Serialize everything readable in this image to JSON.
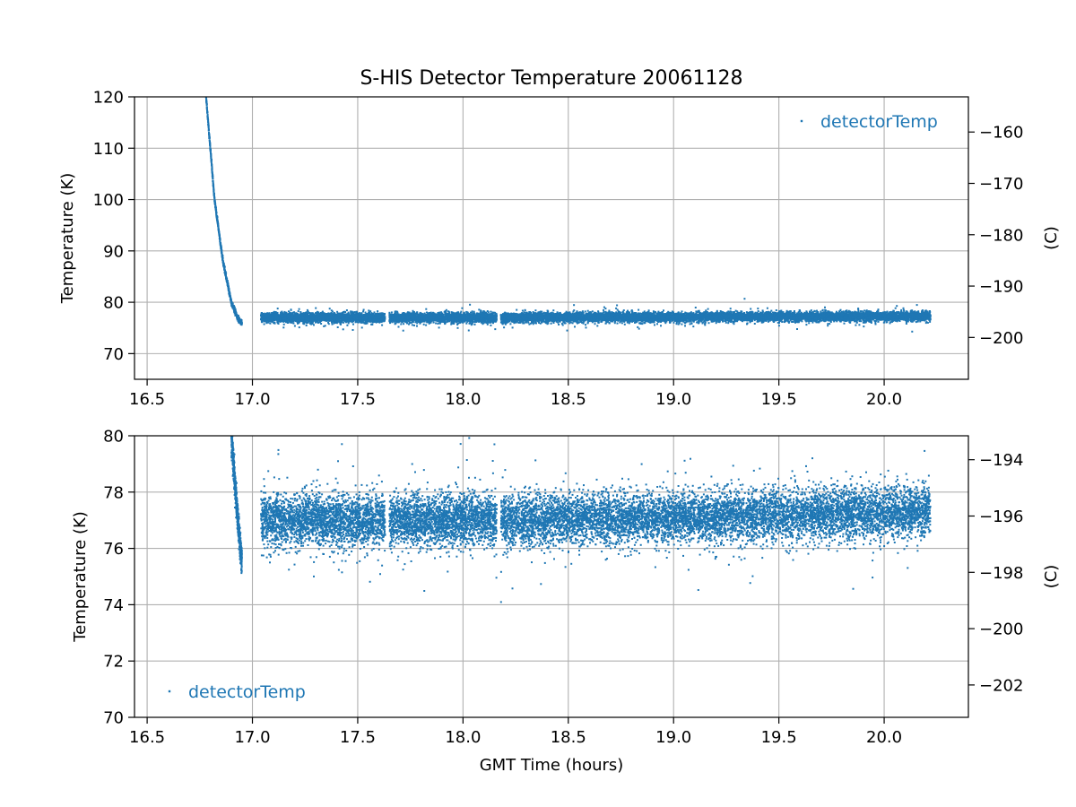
{
  "figure": {
    "title": "S-HIS Detector Temperature 20061128"
  },
  "chart_data": [
    {
      "type": "scatter",
      "title": "S-HIS Detector Temperature 20061128",
      "xlabel": "",
      "ylabel": "Temperature (K)",
      "y2label": "(C)",
      "xlim": [
        16.44,
        20.4
      ],
      "ylim": [
        65,
        120
      ],
      "y2lim": [
        -208.15,
        -153.15
      ],
      "xticks": [
        16.5,
        17.0,
        17.5,
        18.0,
        18.5,
        19.0,
        19.5,
        20.0
      ],
      "xtick_labels": [
        "16.5",
        "17.0",
        "17.5",
        "18.0",
        "18.5",
        "19.0",
        "19.5",
        "20.0"
      ],
      "yticks": [
        70,
        80,
        90,
        100,
        110,
        120
      ],
      "ytick_labels": [
        "70",
        "80",
        "90",
        "100",
        "110",
        "120"
      ],
      "y2ticks": [
        -200,
        -190,
        -180,
        -170,
        -160
      ],
      "y2tick_labels": [
        "−200",
        "−190",
        "−180",
        "−170",
        "−160"
      ],
      "grid": true,
      "legend": {
        "position": "upper-right",
        "entries": [
          "detectorTemp"
        ]
      },
      "series": [
        {
          "name": "detectorTemp",
          "color": "#1f77b4",
          "cooldown": {
            "x": [
              16.78,
              16.82,
              16.86,
              16.9,
              16.93,
              16.95
            ],
            "y": [
              120,
              100,
              88,
              80,
              77,
              76
            ]
          },
          "segments": [
            [
              17.04,
              17.63
            ],
            [
              17.65,
              18.16
            ],
            [
              18.18,
              20.22
            ]
          ],
          "baseline": {
            "x": [
              17.04,
              18.0,
              19.0,
              20.22
            ],
            "y": [
              77.0,
              77.0,
              77.1,
              77.3
            ]
          },
          "spread": 0.9
        }
      ]
    },
    {
      "type": "scatter",
      "title": "",
      "xlabel": "GMT Time (hours)",
      "ylabel": "Temperature (K)",
      "y2label": "(C)",
      "xlim": [
        16.44,
        20.4
      ],
      "ylim": [
        70,
        80
      ],
      "y2lim": [
        -203.15,
        -193.15
      ],
      "xticks": [
        16.5,
        17.0,
        17.5,
        18.0,
        18.5,
        19.0,
        19.5,
        20.0
      ],
      "xtick_labels": [
        "16.5",
        "17.0",
        "17.5",
        "18.0",
        "18.5",
        "19.0",
        "19.5",
        "20.0"
      ],
      "yticks": [
        70,
        72,
        74,
        76,
        78,
        80
      ],
      "ytick_labels": [
        "70",
        "72",
        "74",
        "76",
        "78",
        "80"
      ],
      "y2ticks": [
        -202,
        -200,
        -198,
        -196,
        -194
      ],
      "y2tick_labels": [
        "−202",
        "−200",
        "−198",
        "−196",
        "−194"
      ],
      "grid": true,
      "legend": {
        "position": "lower-left",
        "entries": [
          "detectorTemp"
        ]
      },
      "series": [
        {
          "name": "detectorTemp",
          "color": "#1f77b4",
          "cooldown": {
            "x": [
              16.9,
              16.92,
              16.94,
              16.95
            ],
            "y": [
              80,
              78,
              76.2,
              75.5
            ]
          },
          "segments": [
            [
              17.04,
              17.63
            ],
            [
              17.65,
              18.16
            ],
            [
              18.18,
              20.22
            ]
          ],
          "baseline": {
            "x": [
              17.04,
              18.0,
              19.0,
              20.22
            ],
            "y": [
              77.0,
              77.0,
              77.1,
              77.3
            ]
          },
          "spread": 0.9
        }
      ]
    }
  ]
}
